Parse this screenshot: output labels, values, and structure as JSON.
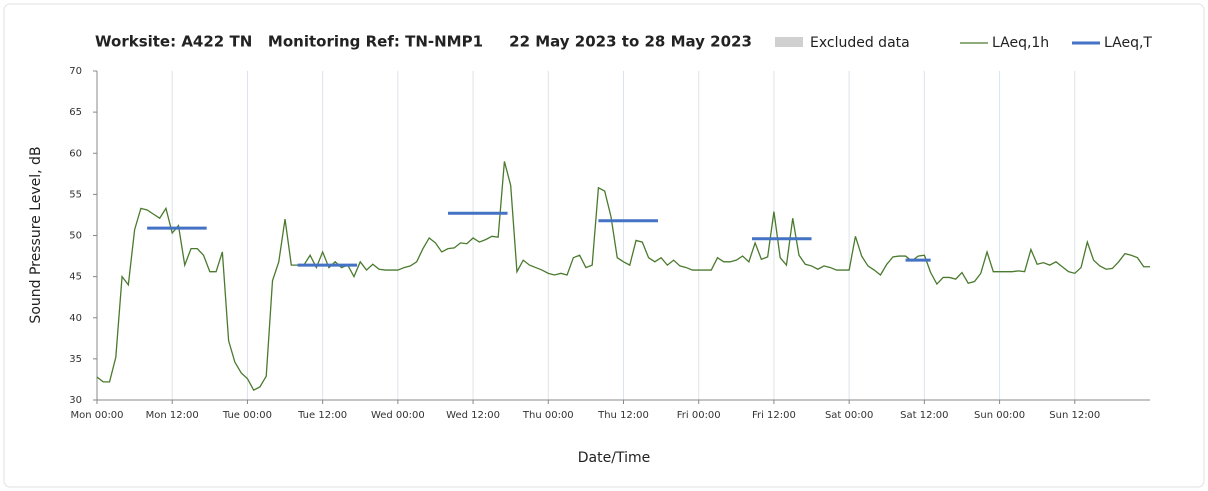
{
  "chart_data": {
    "type": "line",
    "title": "Worksite: A422 TN   Monitoring Ref: TN-NMP1     22 May 2023 to 28 May 2023",
    "x_label": "Date/Time",
    "y_label": "Sound Pressure Level, dB",
    "excluded_label": "Excluded data",
    "excluded_color": "#d0d0d0",
    "xlim": [
      0,
      168
    ],
    "xticks": [
      {
        "value": 0,
        "label": "Mon 00:00"
      },
      {
        "value": 12,
        "label": "Mon 12:00"
      },
      {
        "value": 24,
        "label": "Tue 00:00"
      },
      {
        "value": 36,
        "label": "Tue 12:00"
      },
      {
        "value": 48,
        "label": "Wed 00:00"
      },
      {
        "value": 60,
        "label": "Wed 12:00"
      },
      {
        "value": 72,
        "label": "Thu 00:00"
      },
      {
        "value": 84,
        "label": "Thu 12:00"
      },
      {
        "value": 96,
        "label": "Fri 00:00"
      },
      {
        "value": 108,
        "label": "Fri 12:00"
      },
      {
        "value": 120,
        "label": "Sat 00:00"
      },
      {
        "value": 132,
        "label": "Sat 12:00"
      },
      {
        "value": 144,
        "label": "Sun 00:00"
      },
      {
        "value": 156,
        "label": "Sun 12:00"
      }
    ],
    "ylim": [
      30,
      70
    ],
    "yticks": [
      30,
      35,
      40,
      45,
      50,
      55,
      60,
      65,
      70
    ],
    "grid": "x",
    "series": [
      {
        "name": "LAeq,1h",
        "color": "#4a7a2e",
        "x": [
          0,
          1,
          2,
          3,
          4,
          5,
          6,
          7,
          8,
          9,
          10,
          11,
          12,
          13,
          14,
          15,
          16,
          17,
          18,
          19,
          20,
          21,
          22,
          23,
          24,
          25,
          26,
          27,
          28,
          29,
          30,
          31,
          32,
          33,
          34,
          35,
          36,
          37,
          38,
          39,
          40,
          41,
          42,
          43,
          44,
          45,
          46,
          47,
          48,
          49,
          50,
          51,
          52,
          53,
          54,
          55,
          56,
          57,
          58,
          59,
          60,
          61,
          62,
          63,
          64,
          65,
          66,
          67,
          68,
          69,
          70,
          71,
          72,
          73,
          74,
          75,
          76,
          77,
          78,
          79,
          80,
          81,
          82,
          83,
          84,
          85,
          86,
          87,
          88,
          89,
          90,
          91,
          92,
          93,
          94,
          95,
          96,
          97,
          98,
          99,
          100,
          101,
          102,
          103,
          104,
          105,
          106,
          107,
          108,
          109,
          110,
          111,
          112,
          113,
          114,
          115,
          116,
          117,
          118,
          119,
          120,
          121,
          122,
          123,
          124,
          125,
          126,
          127,
          128,
          129,
          130,
          131,
          132,
          133,
          134,
          135,
          136,
          137,
          138,
          139,
          140,
          141,
          142,
          143,
          144,
          145,
          146,
          147,
          148,
          149,
          150,
          151,
          152,
          153,
          154,
          155,
          156,
          157,
          158,
          159,
          160,
          161,
          162,
          163,
          164,
          165,
          166,
          167,
          168
        ],
        "values": [
          32.8,
          32.2,
          32.2,
          35.2,
          45,
          44,
          50.7,
          53.3,
          53.1,
          52.6,
          52.1,
          53.3,
          50.3,
          51.2,
          46.4,
          48.4,
          48.4,
          47.6,
          45.6,
          45.6,
          48,
          37.2,
          34.6,
          33.3,
          32.6,
          31.2,
          31.6,
          32.9,
          44.5,
          46.8,
          52,
          46.4,
          46.4,
          46.4,
          47.6,
          46.1,
          48,
          46.1,
          46.8,
          46.1,
          46.4,
          45,
          46.8,
          45.8,
          46.5,
          45.9,
          45.8,
          45.8,
          45.8,
          46.1,
          46.3,
          46.8,
          48.4,
          49.7,
          49.1,
          48,
          48.4,
          48.5,
          49.1,
          49,
          49.7,
          49.2,
          49.5,
          49.9,
          49.8,
          59,
          56.1,
          45.6,
          47,
          46.4,
          46.1,
          45.8,
          45.4,
          45.2,
          45.4,
          45.2,
          47.3,
          47.6,
          46.1,
          46.4,
          55.8,
          55.4,
          52.3,
          47.3,
          46.8,
          46.4,
          49.4,
          49.2,
          47.3,
          46.8,
          47.3,
          46.4,
          47,
          46.3,
          46.1,
          45.8,
          45.8,
          45.8,
          45.8,
          47.3,
          46.8,
          46.8,
          47,
          47.5,
          46.8,
          49.1,
          47.1,
          47.4,
          52.9,
          47.3,
          46.4,
          52.1,
          47.6,
          46.5,
          46.3,
          45.9,
          46.3,
          46.1,
          45.8,
          45.8,
          45.8,
          49.9,
          47.5,
          46.3,
          45.8,
          45.2,
          46.5,
          47.4,
          47.5,
          47.5,
          46.9,
          47.5,
          47.6,
          45.5,
          44.1,
          44.9,
          44.9,
          44.7,
          45.5,
          44.2,
          44.4,
          45.4,
          48,
          45.6,
          45.6,
          45.6,
          45.6,
          45.7,
          45.6,
          48.3,
          46.5,
          46.7,
          46.4,
          46.8,
          46.2,
          45.6,
          45.4,
          46.1,
          49.2,
          47,
          46.3,
          45.9,
          46,
          46.8,
          47.8,
          47.6,
          47.3,
          46.2,
          46.2
        ]
      },
      {
        "name": "LAeq,T",
        "color": "#4472c4",
        "x_start": [
          8,
          32,
          56,
          80,
          104.5,
          129
        ],
        "x_end": [
          17.5,
          41.5,
          65.5,
          89.5,
          114,
          133
        ],
        "values": [
          50.9,
          46.4,
          52.7,
          51.8,
          49.6,
          47
        ]
      }
    ]
  }
}
